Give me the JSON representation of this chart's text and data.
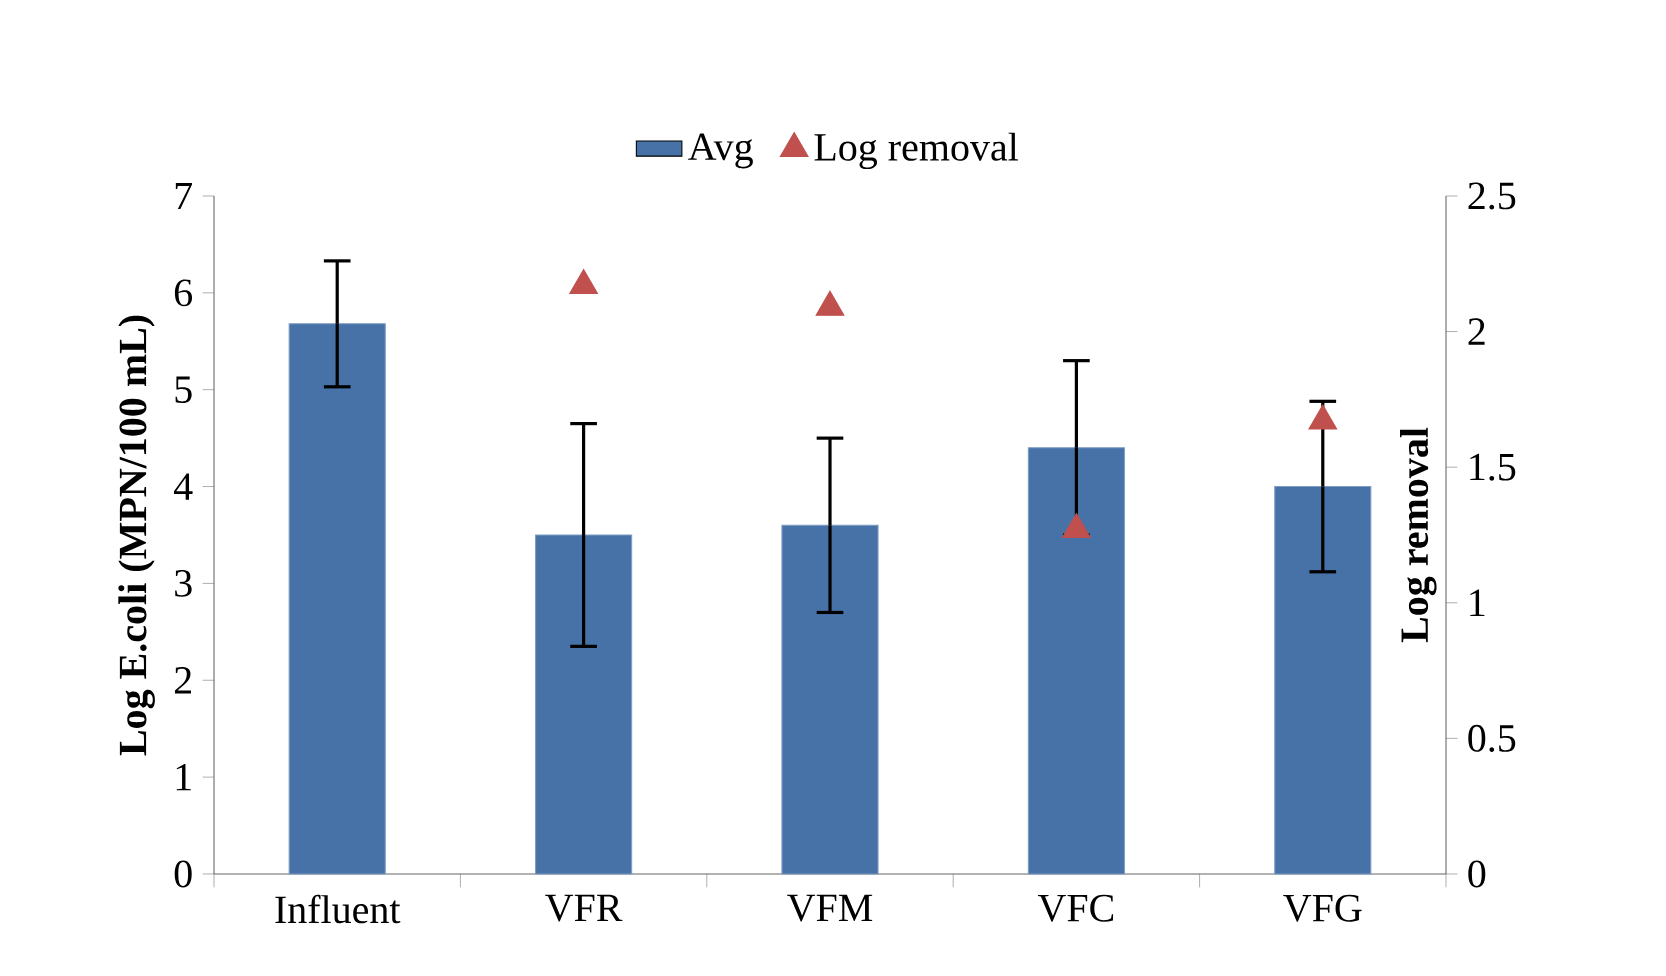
{
  "chart_data": {
    "type": "bar",
    "categories": [
      "Influent",
      "VFR",
      "VFM",
      "VFC",
      "VFG"
    ],
    "ylabel": "Log E.coli  (MPN/100 mL)",
    "y2label": "Log removal",
    "ylim": [
      0,
      7
    ],
    "yticks": [
      0,
      1,
      2,
      3,
      4,
      5,
      6,
      7
    ],
    "y2lim": [
      0,
      2.5
    ],
    "y2ticks": [
      0,
      0.5,
      1,
      1.5,
      2,
      2.5
    ],
    "legend": "top",
    "series": [
      {
        "name": "Avg",
        "color": "#4672a8",
        "values": [
          5.68,
          3.5,
          3.6,
          4.4,
          4.0
        ],
        "errors": [
          0.65,
          1.15,
          0.9,
          0.9,
          0.88
        ]
      },
      {
        "name": "Log removal",
        "type": "scatter",
        "axis": "y2",
        "color": "#c0504d",
        "marker": "triangle",
        "values": [
          null,
          2.17,
          2.09,
          1.27,
          1.67
        ]
      }
    ]
  }
}
